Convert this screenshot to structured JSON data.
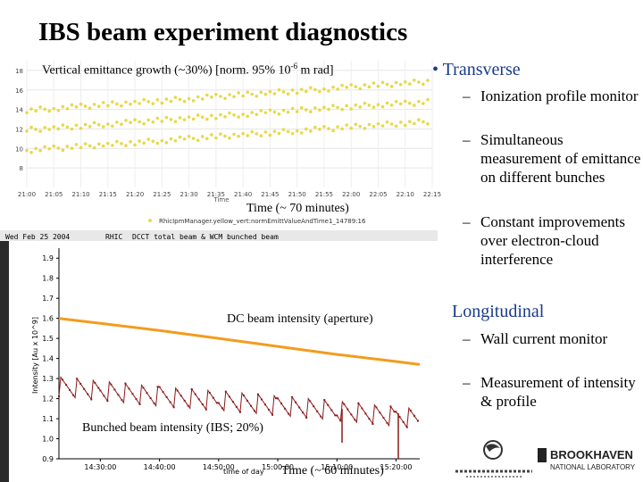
{
  "title": "IBS beam experiment diagnostics",
  "emittance_plot": {
    "label_main": "Vertical emittance growth (~30%) [norm. 95% 10",
    "label_exp": "-6",
    "label_tail": " m rad]",
    "time_label": "Time (~ 70 minutes)",
    "y_ticks": [
      "18",
      "16",
      "14",
      "12",
      "10",
      "8"
    ],
    "x_ticks": [
      "21:00",
      "21:05",
      "21:10",
      "21:15",
      "21:20",
      "21:25",
      "21:30",
      "21:35",
      "21:40",
      "21:45",
      "21:50",
      "21:55",
      "22:00",
      "22:05",
      "22:10",
      "22:15"
    ],
    "axis_title": "Time",
    "legend": "RhicIpmManager.yellow_vert:normEmittValueAndTime1_14789:16"
  },
  "intensity_plot": {
    "header_date": "Wed Feb 25 2004",
    "header_machine": "RHIC",
    "header_title": "DCCT total beam & WCM bunched beam",
    "y_axis_title": "Intensity [Au x 10^9]",
    "y_ticks": [
      "1.9",
      "1.8",
      "1.7",
      "1.6",
      "1.5",
      "1.4",
      "1.3",
      "1.2",
      "1.1",
      "1.0",
      "0.9"
    ],
    "x_ticks": [
      "14:30:00",
      "14:40:00",
      "14:50:00",
      "15:00:00",
      "15:10:00",
      "15:20:00"
    ],
    "x_axis_title": "time of day",
    "dc_label": "DC beam intensity (aperture)",
    "bunch_label": "Bunched beam intensity (IBS; 20%)",
    "time_label": "Time (~ 60 minutes)"
  },
  "bullets": {
    "transverse": "Transverse",
    "transverse_items": [
      "Ionization profile monitor",
      "Simultaneous measurement of emittance on different bunches",
      "Constant improvements over electron-cloud interference"
    ],
    "longitudinal": "Longitudinal",
    "longitudinal_items": [
      "Wall current monitor",
      "Measurement of intensity & profile"
    ]
  },
  "logos": {
    "bnl_line1": "BROOKHAVEN",
    "bnl_line2": "NATIONAL LABORATORY"
  },
  "colors": {
    "emit_points": "#e8d84a",
    "dc_line": "#f39c1e",
    "bunch_line": "#8b1a1a",
    "heading_blue": "#1a3a8a"
  },
  "chart_data": [
    {
      "type": "scatter",
      "title": "Vertical emittance growth (~30%) [norm. 95% 10^-6 m rad]",
      "xlabel": "Time",
      "ylabel": "",
      "x": [
        "21:00",
        "21:05",
        "21:10",
        "21:15",
        "21:20",
        "21:25",
        "21:30",
        "21:35",
        "21:40",
        "21:45",
        "21:50",
        "21:55",
        "22:00",
        "22:05",
        "22:10",
        "22:15"
      ],
      "ylim": [
        6,
        19
      ],
      "series": [
        {
          "values": [
            13.9,
            14.1,
            14.3,
            14.5,
            14.7,
            14.9,
            15.1,
            15.3,
            15.5,
            15.7,
            15.9,
            16.1,
            16.3,
            16.5,
            16.7,
            16.9
          ]
        },
        {
          "values": [
            11.9,
            12.1,
            12.3,
            12.5,
            12.7,
            12.9,
            13.1,
            13.3,
            13.5,
            13.7,
            13.9,
            14.1,
            14.3,
            14.5,
            14.6,
            14.8
          ]
        },
        {
          "values": [
            9.8,
            10.0,
            10.2,
            10.4,
            10.6,
            10.8,
            11.0,
            11.2,
            11.4,
            11.6,
            11.8,
            12.0,
            12.2,
            12.4,
            12.6,
            12.8
          ]
        }
      ]
    },
    {
      "type": "line",
      "title": "DCCT total beam & WCM bunched beam",
      "xlabel": "time of day",
      "ylabel": "Intensity [Au x 10^9]",
      "x": [
        "14:23:00",
        "14:30:00",
        "14:40:00",
        "14:50:00",
        "15:00:00",
        "15:10:00",
        "15:20:00",
        "15:24:00"
      ],
      "ylim": [
        0.9,
        1.95
      ],
      "series": [
        {
          "name": "DC beam intensity (aperture)",
          "values": [
            1.6,
            1.575,
            1.54,
            1.5,
            1.46,
            1.42,
            1.385,
            1.37
          ]
        },
        {
          "name": "Bunched beam intensity (IBS; 20%)",
          "values": [
            1.26,
            1.24,
            1.21,
            1.19,
            1.165,
            1.14,
            1.11,
            1.1
          ]
        }
      ]
    }
  ]
}
